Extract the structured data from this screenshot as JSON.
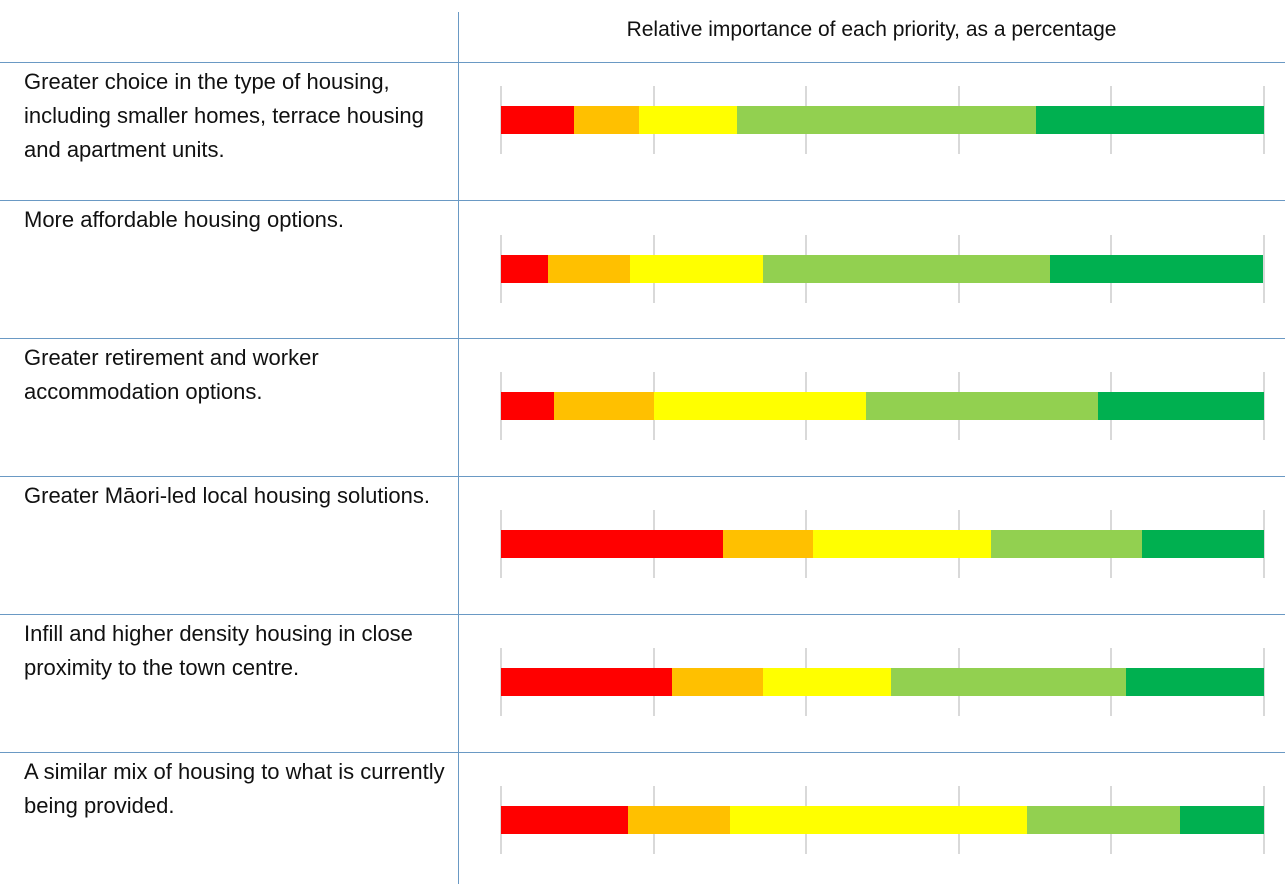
{
  "chart_data": {
    "type": "stacked-bar",
    "orientation": "horizontal",
    "title": "Relative importance of each priority, as a percentage",
    "categories": [
      "Greater choice in the type of housing, including smaller homes, terrace housing and apartment units.",
      "More affordable housing options.",
      "Greater retirement and worker accommodation options.",
      "Greater Māori-led local housing solutions.",
      "Infill and higher density housing in close proximity to the town centre.",
      "A similar mix of housing to what is currently being provided."
    ],
    "series": [
      {
        "color": "#ff0000",
        "values": [
          9.6,
          6.2,
          6.9,
          29.1,
          22.4,
          16.6
        ]
      },
      {
        "color": "#ffc000",
        "values": [
          8.5,
          10.7,
          13.1,
          11.8,
          11.9,
          13.4
        ]
      },
      {
        "color": "#ffff00",
        "values": [
          12.8,
          17.4,
          27.9,
          23.3,
          16.8,
          38.9
        ]
      },
      {
        "color": "#92d050",
        "values": [
          39.2,
          37.6,
          30.3,
          19.8,
          30.8,
          20.1
        ]
      },
      {
        "color": "#00b050",
        "values": [
          29.9,
          28.0,
          21.8,
          16.0,
          18.1,
          11.0
        ]
      }
    ],
    "xlim": [
      0,
      100
    ],
    "xticks": [
      0,
      20,
      40,
      60,
      80,
      100
    ],
    "grid": true
  }
}
